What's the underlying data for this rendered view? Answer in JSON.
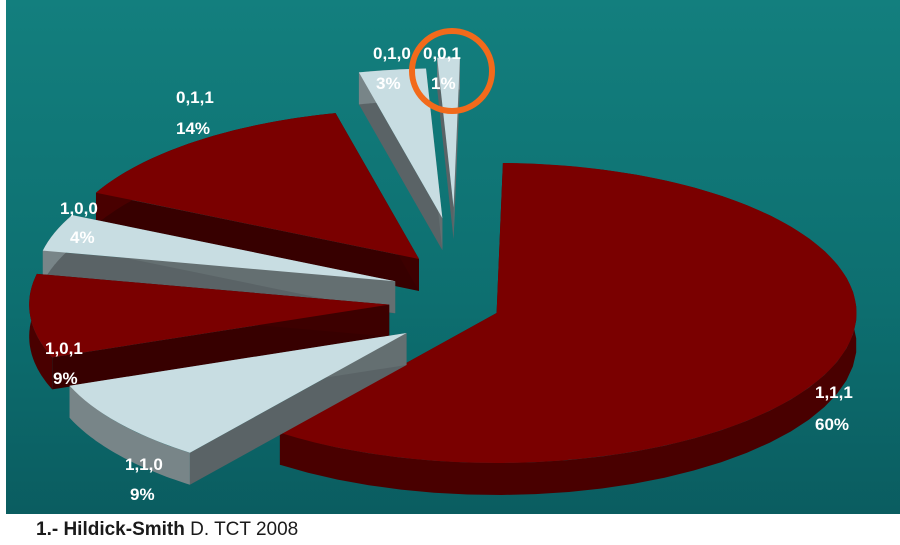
{
  "chart_data": {
    "type": "pie",
    "title": "",
    "slices": [
      {
        "label": "1,1,1",
        "percent": "60%",
        "value": 60,
        "color": "#7a0000"
      },
      {
        "label": "1,1,0",
        "percent": "9%",
        "value": 9,
        "color": "#c8dde2"
      },
      {
        "label": "1,0,1",
        "percent": "9%",
        "value": 9,
        "color": "#7a0000"
      },
      {
        "label": "1,0,0",
        "percent": "4%",
        "value": 4,
        "color": "#c8dde2"
      },
      {
        "label": "0,1,1",
        "percent": "14%",
        "value": 14,
        "color": "#7a0000"
      },
      {
        "label": "0,1,0",
        "percent": "3%",
        "value": 3,
        "color": "#c8dde2"
      },
      {
        "label": "0,0,1",
        "percent": "1%",
        "value": 1,
        "color": "#c8dde2"
      }
    ],
    "highlighted_slice": "0,0,1",
    "highlight_color": "#f26a1b",
    "background_color": "#0f7a78"
  },
  "citation": {
    "author": "1.- Hildick-Smith",
    "rest": " D. TCT 2008"
  }
}
